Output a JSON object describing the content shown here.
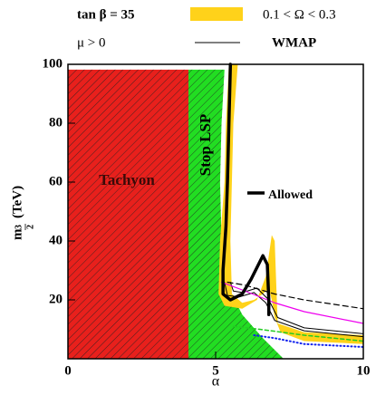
{
  "chart_data": {
    "type": "line",
    "x_label": "α",
    "y_label": [
      "m",
      "3",
      "2",
      "(TeV)"
    ],
    "header": {
      "tan_beta": "tan β = 35",
      "mu": "μ > 0"
    },
    "xlim": [
      0,
      10
    ],
    "ylim": [
      0,
      100
    ],
    "xticks": [
      0,
      5,
      10
    ],
    "yticks": [
      20,
      40,
      60,
      80,
      100
    ],
    "regions": [
      {
        "name": "Tachyon",
        "color": "#e8201c",
        "x": [
          0,
          0,
          4.08,
          4.08
        ],
        "y": [
          0,
          98.2,
          98.2,
          0
        ]
      },
      {
        "name": "Stop LSP",
        "color": "#22dd22",
        "x": [
          4.08,
          4.08,
          5.3,
          5.2,
          5.15,
          5.2,
          5.4,
          5.9,
          6.6,
          7.3
        ],
        "y": [
          0,
          98.2,
          98.2,
          80,
          60,
          40,
          25,
          15,
          7,
          0
        ]
      }
    ],
    "band": {
      "name": "0.1 < Ω < 0.3",
      "color": "#ffd21a",
      "x": [
        5.45,
        5.35,
        5.3,
        5.15,
        5.1,
        5.3,
        5.9,
        6.4,
        6.7,
        6.9,
        7.0,
        7.1,
        8,
        10,
        10,
        8,
        7.2,
        7.0,
        6.9,
        6.8,
        6.6,
        6.3,
        5.9,
        5.55,
        5.5,
        5.6,
        5.75
      ],
      "y": [
        100,
        80,
        60,
        40,
        22,
        18,
        17,
        20,
        28,
        42,
        40,
        12,
        9,
        8,
        5,
        6,
        9,
        14,
        20,
        24,
        22,
        20,
        19,
        22,
        40,
        80,
        100
      ]
    },
    "series": [
      {
        "name": "WMAP",
        "color": "#000000",
        "width": 1,
        "dash": "none",
        "x": [
          5.3,
          5.4,
          5.8,
          6.3,
          6.7,
          7.0,
          8,
          10
        ],
        "y": [
          26,
          21.5,
          21,
          22.5,
          19,
          13,
          9.5,
          7.5
        ]
      },
      {
        "color": "#000000",
        "width": 1,
        "dash": "none",
        "x": [
          5.5,
          5.6,
          5.9,
          6.4,
          6.8,
          7.1,
          8,
          10
        ],
        "y": [
          26,
          23,
          22.5,
          24,
          20,
          14,
          10.5,
          8.5
        ]
      },
      {
        "color": "#000000",
        "width": 1.2,
        "dash": "6,4",
        "x": [
          5.4,
          6,
          7,
          8,
          10
        ],
        "y": [
          26,
          25,
          22,
          20,
          17
        ]
      },
      {
        "color": "#ee00ee",
        "width": 1.2,
        "dash": "none",
        "x": [
          5.2,
          6,
          7,
          8,
          10
        ],
        "y": [
          26,
          23,
          19,
          16,
          12
        ]
      },
      {
        "color": "#22cc22",
        "width": 1.5,
        "dash": "4,3",
        "x": [
          5.6,
          6.5,
          8,
          10
        ],
        "y": [
          11,
          10,
          8,
          6
        ]
      },
      {
        "color": "#1122ee",
        "width": 2,
        "dash": "1,3",
        "x": [
          6.3,
          7,
          8,
          10
        ],
        "y": [
          8,
          7,
          5,
          4
        ]
      },
      {
        "name": "Allowed",
        "color": "#000000",
        "width": 3.5,
        "dash": "none",
        "x": [
          5.5,
          5.45,
          5.4,
          5.35,
          5.25,
          5.25,
          5.5,
          5.9,
          6.2,
          6.5,
          6.6,
          6.75,
          6.8,
          6.8
        ],
        "y": [
          100,
          80,
          60,
          45,
          30,
          22,
          20,
          22,
          27,
          33,
          35,
          32,
          20,
          15
        ]
      }
    ]
  }
}
